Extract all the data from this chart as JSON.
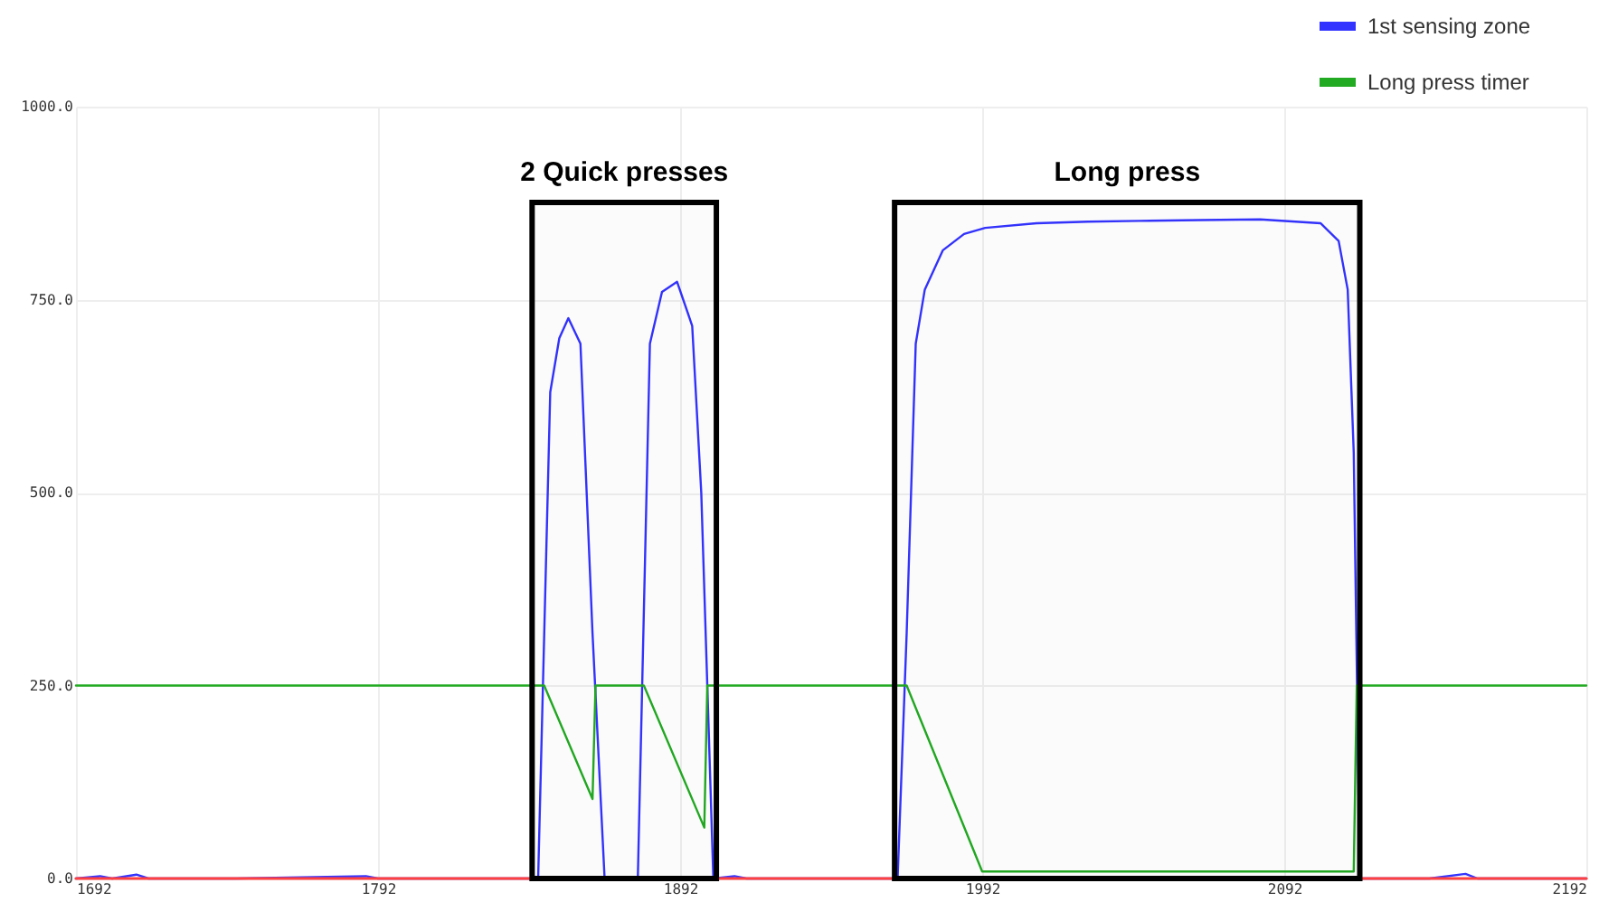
{
  "chart_data": {
    "type": "line",
    "legend": "top right",
    "grid": true,
    "marker": "none",
    "line_style": "solid",
    "xlim": [
      1692,
      2192
    ],
    "xticks": [
      1692,
      1792,
      1892,
      1992,
      2092,
      2192
    ],
    "ylim": [
      0,
      1000
    ],
    "yticks": [
      {
        "value": 0,
        "label": "0.0"
      },
      {
        "value": 250,
        "label": "250.0"
      },
      {
        "value": 500,
        "label": "500.0"
      },
      {
        "value": 750,
        "label": "750.0"
      },
      {
        "value": 1000,
        "label": "1000.0"
      }
    ],
    "bands": [
      {
        "axis": "x",
        "from": 1843,
        "to": 1904,
        "label": "2 Quick presses",
        "color": "#000000"
      },
      {
        "axis": "x",
        "from": 1963,
        "to": 2117,
        "label": "Long press",
        "color": "#000000"
      }
    ],
    "series": [
      {
        "color": "#ff4040",
        "x": [
          1692,
          2192
        ],
        "values": [
          0,
          0
        ]
      },
      {
        "name": "1st sensing zone",
        "color": "#3333ff",
        "x": [
          1692,
          1700,
          1704,
          1712,
          1716,
          1745,
          1788,
          1792,
          1845,
          1849,
          1852,
          1855,
          1859,
          1863,
          1867,
          1878,
          1882,
          1886,
          1891,
          1896,
          1899,
          1903,
          1910,
          1914,
          1964,
          1967,
          1970,
          1973,
          1979,
          1986,
          1993,
          2010,
          2027,
          2044,
          2064,
          2084,
          2104,
          2110,
          2113,
          2115,
          2117,
          2140,
          2152,
          2156,
          2192
        ],
        "values": [
          0,
          3,
          0,
          5,
          0,
          0,
          3,
          0,
          0,
          630,
          700,
          726,
          693,
          318,
          0,
          0,
          693,
          760,
          773,
          716,
          500,
          0,
          3,
          0,
          0,
          318,
          693,
          763,
          814,
          835,
          843,
          849,
          851,
          852,
          853,
          854,
          849,
          826,
          763,
          552,
          0,
          0,
          6,
          0,
          0
        ]
      },
      {
        "name": "Long press timer",
        "color": "#22aa22",
        "x": [
          1692,
          1847,
          1863,
          1864,
          1880,
          1900,
          1901,
          1967,
          1992,
          2115,
          2116,
          2192
        ],
        "values": [
          250,
          250,
          103,
          250,
          250,
          66,
          250,
          250,
          9,
          9,
          250,
          250
        ]
      }
    ]
  }
}
